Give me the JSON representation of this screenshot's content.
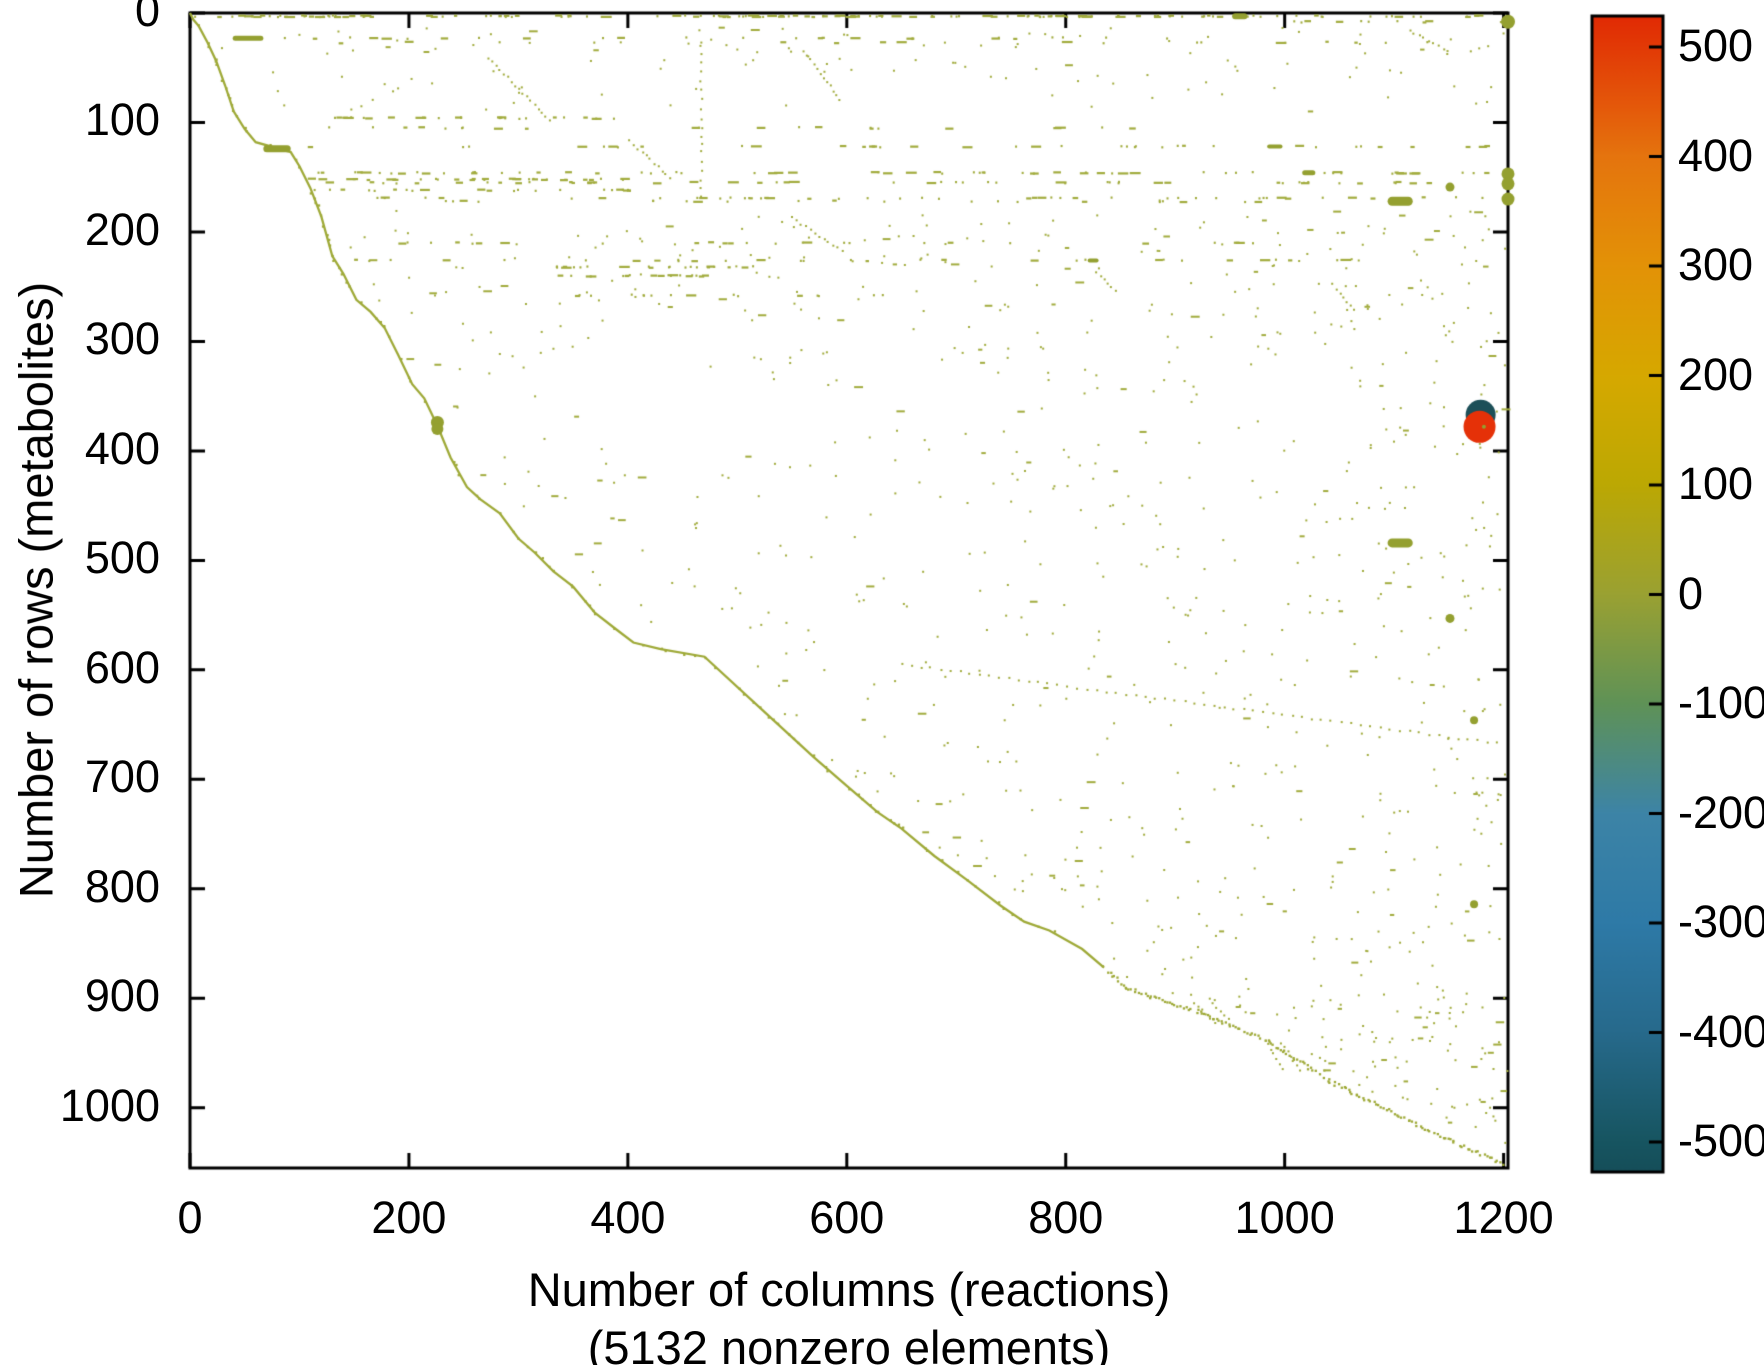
{
  "chart_data": {
    "type": "scatter",
    "subtype": "sparse-matrix-spy-plot",
    "xlabel": "Number of columns (reactions)",
    "xlabel2": "(5132 nonzero elements)",
    "ylabel": "Number of rows (metabolites)",
    "nonzero_elements": 5132,
    "xlim": [
      0,
      1204
    ],
    "ylim": [
      0,
      1055
    ],
    "y_axis_reversed": true,
    "grid": false,
    "x_ticks": [
      0,
      200,
      400,
      600,
      800,
      1000,
      1200
    ],
    "y_ticks": [
      0,
      100,
      200,
      300,
      400,
      500,
      600,
      700,
      800,
      900,
      1000
    ],
    "colorbar": {
      "position": "right",
      "ticks": [
        500,
        400,
        300,
        200,
        100,
        0,
        -100,
        -200,
        -300,
        -400,
        -500
      ],
      "vmin": -527,
      "vmax": 528,
      "gradient_stops": [
        [
          0.0,
          "#e12a04"
        ],
        [
          0.074,
          "#e4560a"
        ],
        [
          0.121,
          "#e5740e"
        ],
        [
          0.216,
          "#e39207"
        ],
        [
          0.311,
          "#d6a800"
        ],
        [
          0.405,
          "#bca803"
        ],
        [
          0.5,
          "#9aa132"
        ],
        [
          0.595,
          "#5f9257"
        ],
        [
          0.689,
          "#3d84a6"
        ],
        [
          0.784,
          "#2e7aa7"
        ],
        [
          0.878,
          "#276a8c"
        ],
        [
          0.973,
          "#175561"
        ],
        [
          1.0,
          "#154e59"
        ]
      ]
    },
    "colors": {
      "dot": "#a2ac3e",
      "dot_bold": "#94a030",
      "staircase": "#9faa38",
      "marker_red": "#e53108",
      "marker_teal": "#1c4f58",
      "axis": "#000000"
    },
    "seed": 42,
    "staircase": [
      [
        0,
        0
      ],
      [
        3,
        6
      ],
      [
        8,
        12
      ],
      [
        16,
        27
      ],
      [
        24,
        44
      ],
      [
        32,
        66
      ],
      [
        40,
        90
      ],
      [
        50,
        106
      ],
      [
        60,
        118
      ],
      [
        92,
        127
      ],
      [
        100,
        140
      ],
      [
        110,
        160
      ],
      [
        120,
        186
      ],
      [
        130,
        222
      ],
      [
        140,
        238
      ],
      [
        152,
        262
      ],
      [
        165,
        273
      ],
      [
        178,
        288
      ],
      [
        190,
        312
      ],
      [
        203,
        339
      ],
      [
        214,
        352
      ],
      [
        226,
        377
      ],
      [
        238,
        406
      ],
      [
        253,
        433
      ],
      [
        265,
        444
      ],
      [
        283,
        457
      ],
      [
        300,
        480
      ],
      [
        315,
        493
      ],
      [
        332,
        510
      ],
      [
        350,
        524
      ],
      [
        370,
        548
      ],
      [
        388,
        562
      ],
      [
        405,
        575
      ],
      [
        430,
        581
      ],
      [
        470,
        588
      ],
      [
        520,
        634
      ],
      [
        570,
        680
      ],
      [
        600,
        706
      ],
      [
        628,
        730
      ],
      [
        650,
        745
      ],
      [
        680,
        770
      ],
      [
        710,
        792
      ],
      [
        740,
        815
      ],
      [
        762,
        830
      ],
      [
        785,
        838
      ],
      [
        815,
        855
      ],
      [
        835,
        872
      ],
      [
        855,
        890
      ],
      [
        880,
        900
      ],
      [
        905,
        907
      ],
      [
        920,
        912
      ],
      [
        935,
        918
      ],
      [
        950,
        925
      ],
      [
        968,
        932
      ],
      [
        985,
        940
      ],
      [
        1000,
        950
      ],
      [
        1020,
        962
      ],
      [
        1040,
        975
      ],
      [
        1060,
        985
      ],
      [
        1090,
        1000
      ],
      [
        1110,
        1010
      ],
      [
        1130,
        1020
      ],
      [
        1155,
        1032
      ],
      [
        1175,
        1040
      ],
      [
        1199,
        1052
      ]
    ],
    "staircase_dotted_from_x": 835,
    "rows": [
      {
        "y": 3,
        "x0": 2,
        "x1": 1204,
        "n": 95
      },
      {
        "y": 3,
        "x0": 35,
        "x1": 160,
        "n": 22
      },
      {
        "y": 3,
        "x0": 480,
        "x1": 645,
        "n": 20
      },
      {
        "y": 3,
        "x0": 760,
        "x1": 935,
        "n": 20
      },
      {
        "y": 8,
        "x0": 1000,
        "x1": 1200,
        "n": 10
      },
      {
        "y": 23,
        "x0": 30,
        "x1": 900,
        "n": 26
      },
      {
        "y": 27,
        "x0": 70,
        "x1": 1204,
        "n": 18
      },
      {
        "y": 96,
        "x0": 70,
        "x1": 390,
        "n": 26
      },
      {
        "y": 105,
        "x0": 90,
        "x1": 870,
        "n": 22
      },
      {
        "y": 122,
        "x0": 95,
        "x1": 1204,
        "n": 38
      },
      {
        "y": 146,
        "x0": 90,
        "x1": 1204,
        "n": 64
      },
      {
        "y": 152,
        "x0": 98,
        "x1": 402,
        "n": 30
      },
      {
        "y": 155,
        "x0": 95,
        "x1": 1204,
        "n": 52
      },
      {
        "y": 162,
        "x0": 98,
        "x1": 402,
        "n": 26
      },
      {
        "y": 169,
        "x0": 100,
        "x1": 1204,
        "n": 48
      },
      {
        "y": 172,
        "x0": 230,
        "x1": 1000,
        "n": 22
      },
      {
        "y": 210,
        "x0": 150,
        "x1": 1000,
        "n": 26
      },
      {
        "y": 226,
        "x0": 100,
        "x1": 1204,
        "n": 30
      },
      {
        "y": 232,
        "x0": 330,
        "x1": 530,
        "n": 22
      },
      {
        "y": 240,
        "x0": 330,
        "x1": 530,
        "n": 18
      },
      {
        "y": 258,
        "x0": 350,
        "x1": 640,
        "n": 16
      }
    ],
    "bold_dashes": [
      {
        "x0": 67,
        "x1": 92,
        "y": 124,
        "t": 7
      },
      {
        "x0": 39,
        "x1": 67,
        "y": 23,
        "t": 5
      },
      {
        "x0": 984,
        "x1": 998,
        "y": 122,
        "t": 4
      },
      {
        "x0": 1016,
        "x1": 1028,
        "y": 146,
        "t": 5
      },
      {
        "x0": 952,
        "x1": 966,
        "y": 3,
        "t": 6
      },
      {
        "x0": 1094,
        "x1": 1117,
        "y": 172,
        "t": 9
      },
      {
        "x0": 1094,
        "x1": 1117,
        "y": 484,
        "t": 9
      },
      {
        "x0": 820,
        "x1": 830,
        "y": 226,
        "t": 4
      }
    ],
    "diag_runs": [
      {
        "p": [
          [
            273,
            41
          ],
          [
            330,
            100
          ]
        ]
      },
      {
        "p": [
          [
            561,
            35
          ],
          [
            596,
            82
          ]
        ]
      },
      {
        "p": [
          [
            550,
            187
          ],
          [
            596,
            218
          ]
        ]
      },
      {
        "p": [
          [
            402,
            117
          ],
          [
            440,
            152
          ]
        ]
      },
      {
        "p": [
          [
            828,
            237
          ],
          [
            848,
            257
          ]
        ]
      },
      {
        "p": [
          [
            1044,
            248
          ],
          [
            1066,
            274
          ]
        ]
      },
      {
        "p": [
          [
            650,
            595
          ],
          [
            1200,
            668
          ]
        ]
      },
      {
        "p": [
          [
            918,
            904
          ],
          [
            938,
            924
          ]
        ]
      },
      {
        "p": [
          [
            931,
            901
          ],
          [
            950,
            920
          ]
        ]
      },
      {
        "p": [
          [
            982,
            938
          ],
          [
            1000,
            968
          ]
        ]
      },
      {
        "p": [
          [
            997,
            941
          ],
          [
            1014,
            967
          ]
        ]
      },
      {
        "p": [
          [
            1114,
            16
          ],
          [
            1153,
            37
          ]
        ]
      }
    ],
    "vert_runs": [
      {
        "x": 467,
        "y0": 30,
        "y1": 170
      }
    ],
    "regions": [
      {
        "x0": 0,
        "x1": 1204,
        "y0": 12,
        "y1": 92,
        "n": 120
      },
      {
        "x0": 140,
        "x1": 1204,
        "y0": 180,
        "y1": 280,
        "n": 170
      },
      {
        "x0": 200,
        "x1": 1204,
        "y0": 280,
        "y1": 430,
        "n": 170
      },
      {
        "x0": 230,
        "x1": 1204,
        "y0": 430,
        "y1": 600,
        "n": 160
      },
      {
        "x0": 420,
        "x1": 1204,
        "y0": 600,
        "y1": 780,
        "n": 130
      },
      {
        "x0": 600,
        "x1": 1204,
        "y0": 780,
        "y1": 900,
        "n": 90
      },
      {
        "x0": 750,
        "x1": 1204,
        "y0": 900,
        "y1": 1045,
        "n": 80
      },
      {
        "x0": 1050,
        "x1": 1204,
        "y0": 180,
        "y1": 1000,
        "n": 90
      }
    ],
    "markers": [
      {
        "x": 1179,
        "y": 367,
        "r": 15,
        "c": "marker_teal"
      },
      {
        "x": 1178,
        "y": 378,
        "r": 16,
        "c": "marker_red"
      },
      {
        "x": 1182,
        "y": 378,
        "r": 2,
        "c": "dot_bold"
      },
      {
        "x": 226,
        "y": 374,
        "r": 6.5,
        "c": "dot_bold"
      },
      {
        "x": 226,
        "y": 380,
        "r": 6,
        "c": "dot_bold"
      },
      {
        "x": 1204,
        "y": 8,
        "r": 7,
        "c": "dot_bold"
      },
      {
        "x": 1204,
        "y": 147,
        "r": 6.5,
        "c": "dot_bold"
      },
      {
        "x": 1204,
        "y": 156,
        "r": 6.5,
        "c": "dot_bold"
      },
      {
        "x": 1204,
        "y": 170,
        "r": 6.5,
        "c": "dot_bold"
      },
      {
        "x": 1151,
        "y": 159,
        "r": 4.5,
        "c": "dot_bold"
      },
      {
        "x": 1151,
        "y": 553,
        "r": 4.5,
        "c": "dot_bold"
      },
      {
        "x": 1173,
        "y": 646,
        "r": 4,
        "c": "dot_bold"
      },
      {
        "x": 1173,
        "y": 814,
        "r": 4,
        "c": "dot_bold"
      }
    ]
  }
}
